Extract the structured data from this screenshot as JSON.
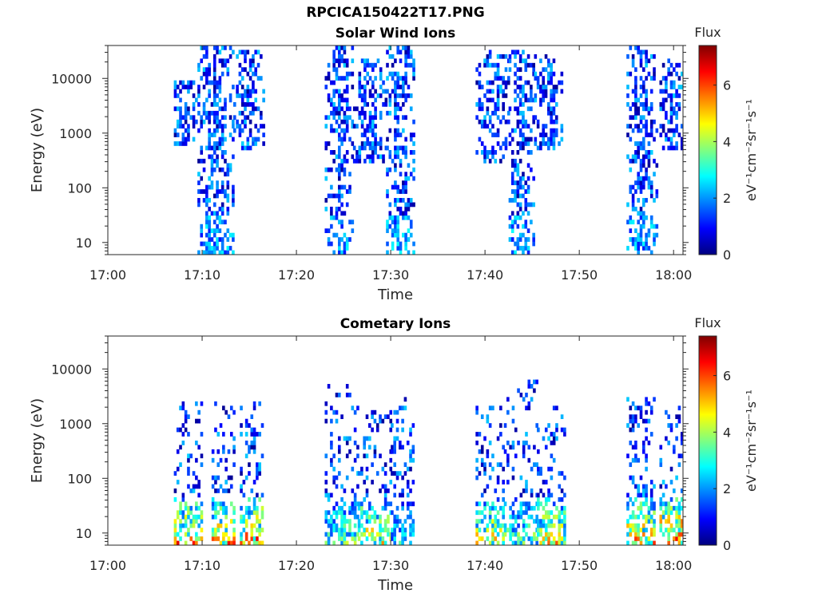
{
  "figure": {
    "title": "RPCICA150422T17.PNG"
  },
  "chart_data": [
    {
      "type": "heatmap",
      "title": "Solar Wind Ions",
      "xlabel": "Time",
      "ylabel": "Energy (eV)",
      "x_ticks": [
        "17:00",
        "17:10",
        "17:20",
        "17:30",
        "17:40",
        "17:50",
        "18:00"
      ],
      "xlim_minutes": [
        0,
        61
      ],
      "y_scale": "log",
      "y_ticks": [
        10,
        100,
        1000,
        10000
      ],
      "y_tick_labels": [
        "10",
        "100",
        "1000",
        "10000"
      ],
      "ylim": [
        6,
        40000
      ],
      "colorbar": {
        "label": "Flux",
        "units": "eV⁻¹cm⁻²sr⁻¹s⁻¹",
        "range": [
          0,
          7.4
        ],
        "ticks": [
          0,
          2,
          4,
          6
        ],
        "colormap": "jet"
      },
      "bursts": [
        {
          "start": 7.0,
          "end": 9.5,
          "emin": 700,
          "emax": 9000,
          "peak_flux": 2.2
        },
        {
          "start": 9.5,
          "end": 13.3,
          "emin": 6,
          "emax": 35000,
          "peak_flux": 3.0
        },
        {
          "start": 13.3,
          "end": 16.5,
          "emin": 500,
          "emax": 30000,
          "peak_flux": 2.2
        },
        {
          "start": 23.0,
          "end": 26.0,
          "emin": 6,
          "emax": 35000,
          "peak_flux": 3.0
        },
        {
          "start": 26.0,
          "end": 29.5,
          "emin": 300,
          "emax": 20000,
          "peak_flux": 2.2
        },
        {
          "start": 29.5,
          "end": 32.5,
          "emin": 6,
          "emax": 38000,
          "peak_flux": 3.0
        },
        {
          "start": 39.0,
          "end": 42.5,
          "emin": 300,
          "emax": 30000,
          "peak_flux": 2.2
        },
        {
          "start": 42.5,
          "end": 45.2,
          "emin": 6,
          "emax": 30000,
          "peak_flux": 3.0
        },
        {
          "start": 45.2,
          "end": 48.2,
          "emin": 500,
          "emax": 25000,
          "peak_flux": 2.2
        },
        {
          "start": 55.0,
          "end": 58.2,
          "emin": 6,
          "emax": 35000,
          "peak_flux": 3.0
        },
        {
          "start": 58.5,
          "end": 61.0,
          "emin": 500,
          "emax": 20000,
          "peak_flux": 2.2
        }
      ]
    },
    {
      "type": "heatmap",
      "title": "Cometary Ions",
      "xlabel": "Time",
      "ylabel": "Energy (eV)",
      "x_ticks": [
        "17:00",
        "17:10",
        "17:20",
        "17:30",
        "17:40",
        "17:50",
        "18:00"
      ],
      "xlim_minutes": [
        0,
        61
      ],
      "y_scale": "log",
      "y_ticks": [
        10,
        100,
        1000,
        10000
      ],
      "y_tick_labels": [
        "10",
        "100",
        "1000",
        "10000"
      ],
      "ylim": [
        6,
        40000
      ],
      "colorbar": {
        "label": "Flux",
        "units": "eV⁻¹cm⁻²sr⁻¹s⁻¹",
        "range": [
          0,
          7.4
        ],
        "ticks": [
          0,
          2,
          4,
          6
        ],
        "colormap": "jet"
      },
      "bursts": [
        {
          "start": 7.0,
          "end": 10.0,
          "emin": 6,
          "emax": 2500,
          "peak_flux": 6.8
        },
        {
          "start": 11.0,
          "end": 13.5,
          "emin": 6,
          "emax": 2500,
          "peak_flux": 6.5
        },
        {
          "start": 14.0,
          "end": 16.5,
          "emin": 6,
          "emax": 2200,
          "peak_flux": 7.0
        },
        {
          "start": 23.0,
          "end": 26.5,
          "emin": 6,
          "emax": 5000,
          "peak_flux": 4.5
        },
        {
          "start": 26.5,
          "end": 30.0,
          "emin": 6,
          "emax": 1500,
          "peak_flux": 6.0
        },
        {
          "start": 30.0,
          "end": 32.5,
          "emin": 6,
          "emax": 3000,
          "peak_flux": 3.5
        },
        {
          "start": 39.0,
          "end": 42.0,
          "emin": 6,
          "emax": 2000,
          "peak_flux": 6.0
        },
        {
          "start": 42.0,
          "end": 45.5,
          "emin": 6,
          "emax": 5500,
          "peak_flux": 4.5
        },
        {
          "start": 45.5,
          "end": 48.5,
          "emin": 6,
          "emax": 1800,
          "peak_flux": 6.0
        },
        {
          "start": 55.0,
          "end": 58.0,
          "emin": 6,
          "emax": 3000,
          "peak_flux": 6.5
        },
        {
          "start": 58.5,
          "end": 61.0,
          "emin": 6,
          "emax": 1800,
          "peak_flux": 7.3
        }
      ]
    }
  ]
}
